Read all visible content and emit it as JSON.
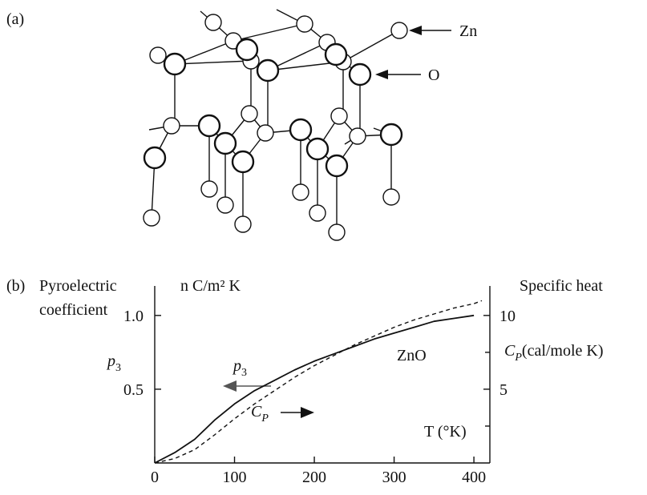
{
  "panel_a": {
    "label": "(a)",
    "zn_label": "Zn",
    "o_label": "O"
  },
  "panel_b": {
    "label": "(b)",
    "left_title_1": "Pyroelectric",
    "left_title_2": "coefficient",
    "left_unit": "n C/m² K",
    "left_axis_var": "p",
    "left_axis_sub": "3",
    "right_title": "Specific heat",
    "right_axis_var": "C",
    "right_axis_sub": "P",
    "right_axis_unit": "(cal/mole K)",
    "curve_label": "ZnO",
    "arrow_p3_var": "p",
    "arrow_p3_sub": "3",
    "arrow_cp_var": "C",
    "arrow_cp_sub": "P",
    "x_axis_label": "T (°K)"
  },
  "chart_data": {
    "type": "line",
    "x_ticks": [
      "0",
      "100",
      "200",
      "300",
      "400"
    ],
    "left_ticks": [
      "0.5",
      "1.0"
    ],
    "right_ticks": [
      "5",
      "10"
    ],
    "xlim": [
      0,
      420
    ],
    "ylim_left": [
      0,
      1.2
    ],
    "ylim_right": [
      0,
      12
    ],
    "series": [
      {
        "name": "p3",
        "axis": "left",
        "style": "solid",
        "x": [
          0,
          25,
          50,
          75,
          100,
          125,
          150,
          175,
          200,
          225,
          250,
          275,
          300,
          325,
          350,
          375,
          400
        ],
        "y": [
          0,
          0.07,
          0.16,
          0.29,
          0.4,
          0.49,
          0.56,
          0.63,
          0.69,
          0.74,
          0.79,
          0.84,
          0.88,
          0.92,
          0.96,
          0.98,
          1.0
        ]
      },
      {
        "name": "CP",
        "axis": "right",
        "style": "dashed",
        "x": [
          0,
          25,
          50,
          75,
          100,
          125,
          150,
          175,
          200,
          225,
          250,
          275,
          300,
          325,
          350,
          375,
          400,
          410
        ],
        "y": [
          0,
          0.3,
          0.9,
          1.9,
          3.0,
          4.0,
          4.9,
          5.8,
          6.6,
          7.3,
          8.0,
          8.6,
          9.2,
          9.7,
          10.1,
          10.5,
          10.8,
          11.0
        ]
      }
    ]
  }
}
